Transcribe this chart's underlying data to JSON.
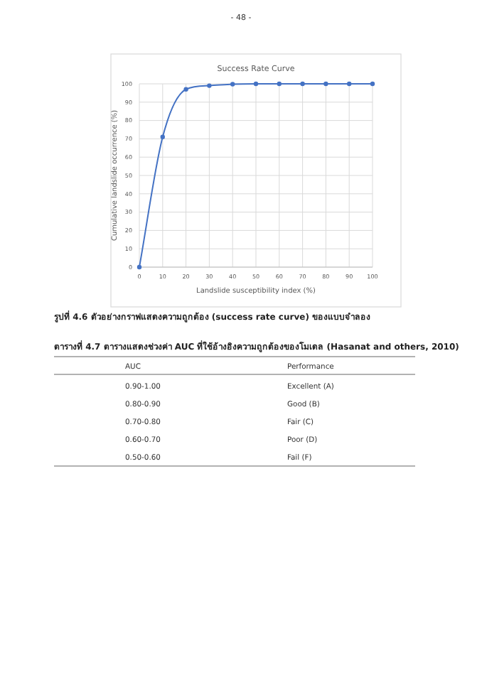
{
  "chart_data": [
    {
      "type": "line",
      "title": "Success Rate Curve",
      "xlabel": "Landslide susceptibility index (%)",
      "ylabel": "Cumulative landslide occurrence (%)",
      "x": [
        0,
        10,
        20,
        30,
        40,
        50,
        60,
        70,
        80,
        90,
        100
      ],
      "series": [
        {
          "color": "#4472c4",
          "values": [
            0,
            71,
            97,
            99,
            99.8,
            100,
            100,
            100,
            100,
            100,
            100
          ]
        }
      ],
      "xlim": [
        0,
        100
      ],
      "ylim": [
        0,
        100
      ],
      "xticks": [
        0,
        10,
        20,
        30,
        40,
        50,
        60,
        70,
        80,
        90,
        100
      ],
      "yticks": [
        0,
        10,
        20,
        30,
        40,
        50,
        60,
        70,
        80,
        90,
        100
      ],
      "grid": true,
      "marker": "circle",
      "line_style": "solid",
      "annotations": [
        "- 48 -",
        "รูปที่ 4.6 ตัวอย่างกราฟแสดงความถูกต้อง (success rate curve) ของแบบจำลอง"
      ]
    },
    {
      "type": "other",
      "title": "ตารางที่ 4.7 ตารางแสดงช่วงค่า AUC ที่ใช้อ้างอิงความถูกต้องของโมเดล (Hasanat and others, 2010)",
      "annotations": [
        "AUC",
        "Performance",
        "0.90-1.00",
        "Excellent (A)",
        "0.80-0.90",
        "Good (B)",
        "0.70-0.80",
        "Fair (C)",
        "0.60-0.70",
        "Poor (D)",
        "0.50-0.60",
        "Fail (F)"
      ]
    }
  ]
}
